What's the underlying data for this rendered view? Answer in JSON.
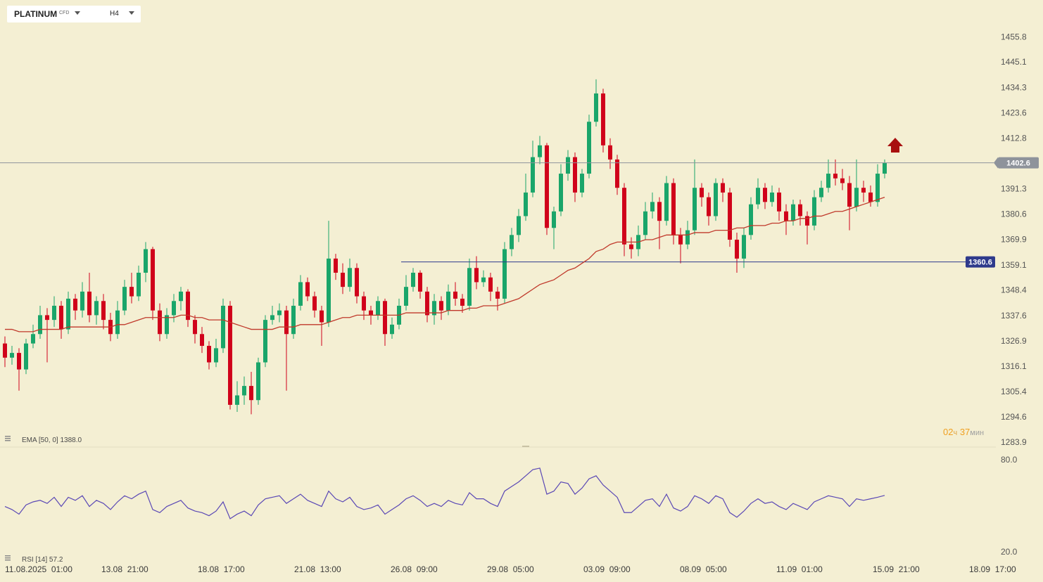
{
  "header": {
    "symbol": "PLATINUM",
    "asset_class": "CFD",
    "timeframe": "H4"
  },
  "chart_data": [
    {
      "type": "candlestick",
      "up_color": "#1aa56a",
      "down_color": "#d0021b",
      "open": [
        1326,
        1320,
        1322,
        1315,
        1326,
        1330,
        1338,
        1336,
        1342,
        1332,
        1345,
        1340,
        1348,
        1338,
        1344,
        1336,
        1330,
        1340,
        1350,
        1346,
        1356,
        1366,
        1340,
        1330,
        1338,
        1344,
        1348,
        1336,
        1330,
        1325,
        1318,
        1324,
        1342,
        1300,
        1304,
        1308,
        1302,
        1318,
        1336,
        1338,
        1340,
        1330,
        1342,
        1352,
        1346,
        1340,
        1335,
        1362,
        1356,
        1350,
        1358,
        1346,
        1340,
        1338,
        1344,
        1330,
        1334,
        1342,
        1350,
        1356,
        1348,
        1338,
        1344,
        1340,
        1348,
        1345,
        1342,
        1358,
        1352,
        1354,
        1348,
        1345,
        1366,
        1372,
        1380,
        1390,
        1405,
        1410,
        1375,
        1382,
        1398,
        1405,
        1390,
        1398,
        1420,
        1432,
        1410,
        1404,
        1392,
        1368,
        1366,
        1372,
        1382,
        1386,
        1378,
        1394,
        1372,
        1368,
        1374,
        1392,
        1388,
        1380,
        1394,
        1390,
        1370,
        1362,
        1372,
        1385,
        1392,
        1386,
        1390,
        1382,
        1378,
        1385,
        1380,
        1376,
        1388,
        1392,
        1398,
        1396,
        1394,
        1384,
        1392,
        1390,
        1386,
        1398
      ],
      "high": [
        1329,
        1325,
        1324,
        1328,
        1334,
        1342,
        1341,
        1346,
        1344,
        1348,
        1347,
        1352,
        1356,
        1346,
        1347,
        1339,
        1344,
        1353,
        1356,
        1359,
        1369,
        1367,
        1343,
        1341,
        1347,
        1350,
        1349,
        1338,
        1333,
        1327,
        1328,
        1345,
        1344,
        1310,
        1312,
        1314,
        1320,
        1338,
        1342,
        1343,
        1342,
        1345,
        1355,
        1354,
        1348,
        1342,
        1378,
        1364,
        1360,
        1362,
        1360,
        1348,
        1342,
        1346,
        1345,
        1337,
        1345,
        1355,
        1358,
        1357,
        1350,
        1347,
        1346,
        1351,
        1352,
        1347,
        1362,
        1363,
        1357,
        1356,
        1350,
        1369,
        1375,
        1383,
        1398,
        1412,
        1414,
        1411,
        1384,
        1402,
        1408,
        1407,
        1400,
        1423,
        1438,
        1434,
        1413,
        1406,
        1394,
        1371,
        1376,
        1386,
        1390,
        1388,
        1397,
        1396,
        1375,
        1378,
        1404,
        1394,
        1390,
        1396,
        1396,
        1392,
        1373,
        1375,
        1388,
        1396,
        1394,
        1393,
        1392,
        1385,
        1387,
        1387,
        1382,
        1391,
        1395,
        1404,
        1404,
        1400,
        1397,
        1404,
        1395,
        1393,
        1402,
        1404
      ],
      "low": [
        1316,
        1317,
        1306,
        1313,
        1324,
        1328,
        1318,
        1333,
        1328,
        1330,
        1336,
        1337,
        1335,
        1334,
        1332,
        1327,
        1328,
        1338,
        1343,
        1344,
        1352,
        1336,
        1327,
        1328,
        1335,
        1340,
        1333,
        1326,
        1322,
        1315,
        1316,
        1322,
        1298,
        1297,
        1300,
        1296,
        1300,
        1316,
        1334,
        1335,
        1306,
        1328,
        1340,
        1344,
        1337,
        1325,
        1333,
        1353,
        1347,
        1348,
        1343,
        1336,
        1334,
        1336,
        1325,
        1328,
        1332,
        1340,
        1348,
        1345,
        1335,
        1334,
        1336,
        1338,
        1342,
        1339,
        1340,
        1349,
        1350,
        1344,
        1340,
        1343,
        1363,
        1369,
        1378,
        1388,
        1402,
        1372,
        1366,
        1380,
        1395,
        1386,
        1388,
        1396,
        1418,
        1407,
        1400,
        1389,
        1363,
        1362,
        1363,
        1370,
        1379,
        1366,
        1376,
        1368,
        1360,
        1366,
        1372,
        1384,
        1376,
        1378,
        1386,
        1367,
        1356,
        1358,
        1370,
        1383,
        1383,
        1384,
        1378,
        1372,
        1376,
        1376,
        1368,
        1374,
        1386,
        1390,
        1393,
        1391,
        1374,
        1382,
        1386,
        1384,
        1384,
        1396
      ],
      "close": [
        1320,
        1322,
        1315,
        1326,
        1330,
        1338,
        1336,
        1342,
        1332,
        1345,
        1340,
        1348,
        1338,
        1344,
        1336,
        1330,
        1340,
        1350,
        1346,
        1356,
        1366,
        1340,
        1330,
        1338,
        1344,
        1348,
        1336,
        1330,
        1325,
        1318,
        1324,
        1342,
        1300,
        1304,
        1308,
        1302,
        1318,
        1336,
        1338,
        1340,
        1330,
        1342,
        1352,
        1346,
        1340,
        1335,
        1362,
        1356,
        1350,
        1358,
        1346,
        1340,
        1338,
        1344,
        1330,
        1334,
        1342,
        1350,
        1356,
        1348,
        1338,
        1344,
        1340,
        1348,
        1345,
        1342,
        1358,
        1352,
        1354,
        1348,
        1345,
        1366,
        1372,
        1380,
        1390,
        1405,
        1410,
        1375,
        1382,
        1398,
        1405,
        1390,
        1398,
        1420,
        1432,
        1410,
        1404,
        1392,
        1368,
        1366,
        1372,
        1382,
        1386,
        1378,
        1394,
        1372,
        1368,
        1374,
        1392,
        1388,
        1380,
        1394,
        1390,
        1370,
        1362,
        1372,
        1385,
        1392,
        1386,
        1390,
        1382,
        1378,
        1385,
        1380,
        1376,
        1388,
        1392,
        1398,
        1396,
        1394,
        1384,
        1392,
        1390,
        1386,
        1398,
        1402.6
      ],
      "series": [
        {
          "name": "EMA [50, 0]",
          "color": "#c0392b",
          "value_label": "1388.0",
          "values": [
            1332,
            1332,
            1331,
            1331,
            1331,
            1332,
            1332,
            1332,
            1332,
            1333,
            1333,
            1333,
            1333,
            1333,
            1333,
            1333,
            1334,
            1334,
            1335,
            1336,
            1337,
            1337,
            1337,
            1337,
            1337,
            1338,
            1338,
            1337,
            1337,
            1336,
            1336,
            1336,
            1335,
            1334,
            1333,
            1332,
            1332,
            1332,
            1332,
            1333,
            1333,
            1333,
            1334,
            1334,
            1334,
            1334,
            1335,
            1336,
            1337,
            1337,
            1338,
            1338,
            1338,
            1338,
            1338,
            1338,
            1338,
            1339,
            1339,
            1339,
            1339,
            1339,
            1339,
            1340,
            1340,
            1340,
            1341,
            1341,
            1342,
            1342,
            1342,
            1343,
            1344,
            1345,
            1347,
            1349,
            1351,
            1352,
            1353,
            1355,
            1357,
            1358,
            1360,
            1362,
            1365,
            1366,
            1368,
            1369,
            1369,
            1369,
            1369,
            1370,
            1370,
            1371,
            1372,
            1372,
            1372,
            1372,
            1373,
            1373,
            1373,
            1374,
            1374,
            1374,
            1375,
            1375,
            1376,
            1376,
            1376,
            1377,
            1377,
            1378,
            1378,
            1379,
            1379,
            1380,
            1380,
            1381,
            1382,
            1382,
            1383,
            1384,
            1385,
            1386,
            1387,
            1388
          ]
        }
      ],
      "hlines": [
        {
          "value": 1402.6,
          "color": "#8e939b"
        },
        {
          "value": 1360.6,
          "color": "#2e3a8c"
        }
      ],
      "ylim": [
        1282.1,
        1459.7
      ],
      "yticks": [
        1455.8,
        1445.1,
        1434.3,
        1423.6,
        1412.8,
        1391.3,
        1380.6,
        1369.9,
        1359.1,
        1348.4,
        1337.6,
        1326.9,
        1316.1,
        1305.4,
        1294.6,
        1283.9
      ],
      "countdown": {
        "hours": "02",
        "hours_unit": "ч",
        "minutes": "37",
        "minutes_unit": "мин"
      },
      "xticks": [
        "11.08.2025  01:00",
        "13.08  21:00",
        "18.08  17:00",
        "21.08  13:00",
        "26.08  09:00",
        "29.08  05:00",
        "03.09  09:00",
        "08.09  05:00",
        "11.09  01:00",
        "15.09  21:00",
        "18.09  17:00"
      ]
    },
    {
      "type": "line",
      "series": [
        {
          "name": "RSI [14]",
          "color": "#5a48b5",
          "value_label": "57.2",
          "values": [
            50,
            48,
            45,
            51,
            53,
            54,
            52,
            56,
            50,
            56,
            54,
            57,
            50,
            54,
            52,
            48,
            53,
            57,
            55,
            58,
            60,
            48,
            46,
            50,
            52,
            54,
            49,
            47,
            46,
            44,
            47,
            53,
            42,
            45,
            47,
            44,
            51,
            55,
            56,
            57,
            52,
            55,
            58,
            54,
            52,
            50,
            60,
            55,
            53,
            56,
            50,
            48,
            49,
            51,
            45,
            48,
            51,
            55,
            57,
            54,
            50,
            52,
            50,
            54,
            52,
            51,
            59,
            55,
            55,
            52,
            50,
            60,
            63,
            66,
            70,
            74,
            75,
            58,
            60,
            66,
            65,
            58,
            62,
            68,
            70,
            64,
            60,
            56,
            46,
            46,
            50,
            54,
            55,
            50,
            58,
            49,
            47,
            50,
            57,
            55,
            52,
            57,
            55,
            46,
            43,
            47,
            52,
            55,
            52,
            53,
            50,
            48,
            52,
            50,
            48,
            53,
            55,
            57,
            56,
            55,
            50,
            55,
            54,
            55,
            56,
            57.2
          ]
        }
      ],
      "ylim": [
        13.6,
        86.9
      ],
      "yticks": [
        {
          "value": 80,
          "label": "80.0"
        },
        {
          "value": 20,
          "label": "20.0"
        }
      ]
    }
  ]
}
